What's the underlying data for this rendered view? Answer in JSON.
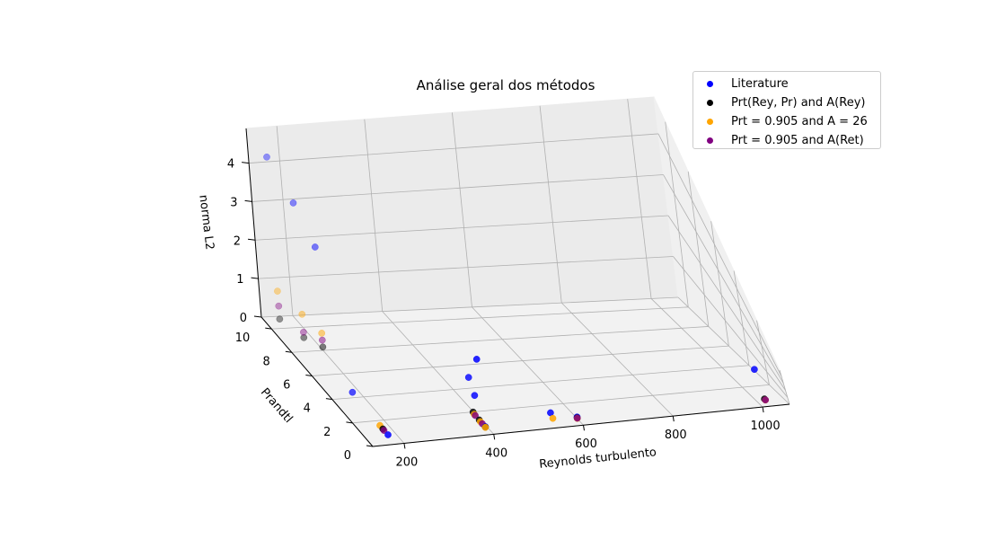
{
  "chart_data": {
    "type": "scatter",
    "projection": "3d",
    "title": "Análise geral dos métodos",
    "xlabel": "Reynolds turbulento",
    "ylabel": "Prandtl",
    "zlabel": "norma L2",
    "xticks": [
      "200",
      "400",
      "600",
      "800",
      "1000"
    ],
    "yticks": [
      "0",
      "2",
      "4",
      "6",
      "8",
      "10"
    ],
    "zticks": [
      "0",
      "1",
      "2",
      "3",
      "4"
    ],
    "legend_position": "top-right",
    "series": [
      {
        "name": "Literature",
        "color": "#0000ff",
        "points": [
          {
            "x": 150,
            "y": 10,
            "z": 4.6
          },
          {
            "x": 180,
            "y": 9,
            "z": 3.8
          },
          {
            "x": 200,
            "y": 8,
            "z": 3.0
          },
          {
            "x": 395,
            "y": 1.0,
            "z": 3.0
          },
          {
            "x": 395,
            "y": 2.0,
            "z": 1.5
          },
          {
            "x": 395,
            "y": 1.5,
            "z": 1.0
          },
          {
            "x": 180,
            "y": 4.2,
            "z": 0.1
          },
          {
            "x": 395,
            "y": 0.6,
            "z": 0.05
          },
          {
            "x": 180,
            "y": 0.7,
            "z": 0.05
          },
          {
            "x": 550,
            "y": 1.0,
            "z": 0.2
          },
          {
            "x": 600,
            "y": 0.6,
            "z": 0.1
          },
          {
            "x": 1020,
            "y": 1.2,
            "z": 2.2
          }
        ]
      },
      {
        "name": "Prt(Rey, Pr) and A(Rey)",
        "color": "#000000",
        "points": [
          {
            "x": 150,
            "y": 10,
            "z": 0.25
          },
          {
            "x": 180,
            "y": 9,
            "z": 0.05
          },
          {
            "x": 200,
            "y": 8,
            "z": 0.1
          },
          {
            "x": 180,
            "y": 1.2,
            "z": 0.05
          },
          {
            "x": 395,
            "y": 1.8,
            "z": 0.1
          },
          {
            "x": 395,
            "y": 1.2,
            "z": 0.05
          },
          {
            "x": 395,
            "y": 0.6,
            "z": 0.03
          },
          {
            "x": 600,
            "y": 0.6,
            "z": 0.05
          },
          {
            "x": 1020,
            "y": 0.7,
            "z": 0.03
          }
        ]
      },
      {
        "name": "Prt = 0.905 and A = 26",
        "color": "#ffa500",
        "points": [
          {
            "x": 150,
            "y": 10,
            "z": 1.0
          },
          {
            "x": 180,
            "y": 9,
            "z": 0.7
          },
          {
            "x": 200,
            "y": 8,
            "z": 0.5
          },
          {
            "x": 180,
            "y": 1.5,
            "z": 0.05
          },
          {
            "x": 395,
            "y": 1.7,
            "z": 0.05
          },
          {
            "x": 395,
            "y": 1.1,
            "z": 0.02
          },
          {
            "x": 395,
            "y": 0.6,
            "z": 0.02
          },
          {
            "x": 600,
            "y": 0.6,
            "z": 0.02
          },
          {
            "x": 550,
            "y": 0.8,
            "z": 0.02
          },
          {
            "x": 1020,
            "y": 0.6,
            "z": 0.02
          }
        ]
      },
      {
        "name": "Prt = 0.905 and A(Ret)",
        "color": "#800080",
        "points": [
          {
            "x": 150,
            "y": 10,
            "z": 0.6
          },
          {
            "x": 180,
            "y": 9,
            "z": 0.2
          },
          {
            "x": 200,
            "y": 8,
            "z": 0.3
          },
          {
            "x": 180,
            "y": 1.1,
            "z": 0.04
          },
          {
            "x": 395,
            "y": 1.6,
            "z": 0.05
          },
          {
            "x": 395,
            "y": 0.9,
            "z": 0.03
          },
          {
            "x": 600,
            "y": 0.6,
            "z": 0.03
          },
          {
            "x": 1020,
            "y": 0.6,
            "z": 0.03
          }
        ]
      }
    ]
  }
}
